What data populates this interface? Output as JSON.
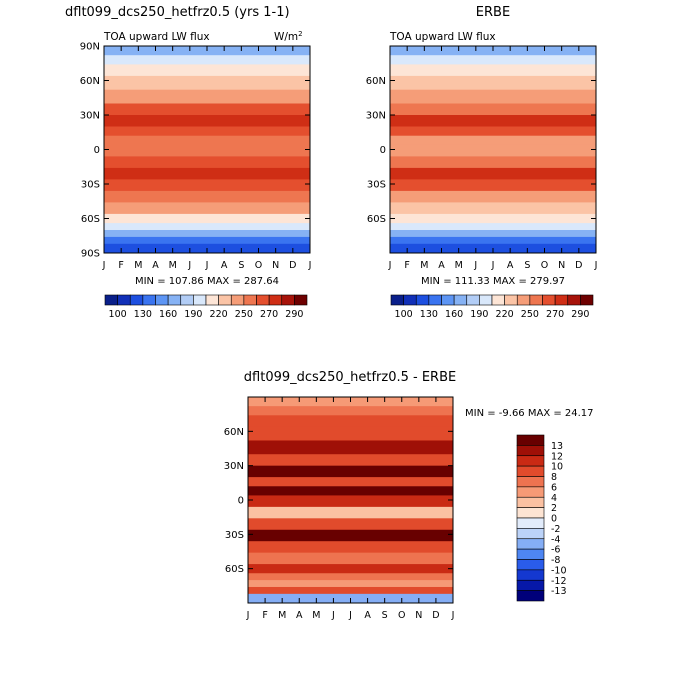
{
  "chart_data": [
    {
      "type": "heatmap",
      "title": "dflt099_dcs250_hetfrz0.5 (yrs 1-1)",
      "subtitle_left": "TOA upward LW flux",
      "units": "W/m",
      "units_sup": "2",
      "stats": "MIN = 107.86 MAX = 287.64",
      "x_ticks": [
        "J",
        "F",
        "M",
        "A",
        "M",
        "J",
        "J",
        "A",
        "S",
        "O",
        "N",
        "D",
        "J"
      ],
      "y_ticks": [
        "90N",
        "60N",
        "30N",
        "0",
        "30S",
        "60S",
        "90S"
      ],
      "y_tick_lats": [
        90,
        60,
        30,
        0,
        -30,
        -60,
        -90
      ],
      "colorbar_labels": [
        "100",
        "130",
        "160",
        "190",
        "220",
        "250",
        "270",
        "290"
      ],
      "colorbar_levels": [
        100,
        115,
        130,
        145,
        160,
        175,
        190,
        205,
        220,
        235,
        250,
        260,
        270,
        280,
        290
      ],
      "bands": [
        {
          "lat": [
            90,
            82
          ],
          "value": 170
        },
        {
          "lat": [
            82,
            74
          ],
          "value": 190
        },
        {
          "lat": [
            74,
            64
          ],
          "value": 210
        },
        {
          "lat": [
            64,
            52
          ],
          "value": 228
        },
        {
          "lat": [
            52,
            40
          ],
          "value": 245
        },
        {
          "lat": [
            40,
            30
          ],
          "value": 262
        },
        {
          "lat": [
            30,
            20
          ],
          "value": 275
        },
        {
          "lat": [
            20,
            12
          ],
          "value": 268
        },
        {
          "lat": [
            12,
            4
          ],
          "value": 255
        },
        {
          "lat": [
            4,
            -6
          ],
          "value": 250
        },
        {
          "lat": [
            -6,
            -16
          ],
          "value": 262
        },
        {
          "lat": [
            -16,
            -26
          ],
          "value": 276
        },
        {
          "lat": [
            -26,
            -36
          ],
          "value": 266
        },
        {
          "lat": [
            -36,
            -46
          ],
          "value": 252
        },
        {
          "lat": [
            -46,
            -56
          ],
          "value": 236
        },
        {
          "lat": [
            -56,
            -64
          ],
          "value": 218
        },
        {
          "lat": [
            -64,
            -70
          ],
          "value": 195
        },
        {
          "lat": [
            -70,
            -76
          ],
          "value": 165
        },
        {
          "lat": [
            -76,
            -82
          ],
          "value": 135
        },
        {
          "lat": [
            -82,
            -90
          ],
          "value": 115
        }
      ]
    },
    {
      "type": "heatmap",
      "title": "ERBE",
      "subtitle_left": "TOA upward LW flux",
      "stats": "MIN = 111.33 MAX = 279.97",
      "x_ticks": [
        "J",
        "F",
        "M",
        "A",
        "M",
        "J",
        "J",
        "A",
        "S",
        "O",
        "N",
        "D",
        "J"
      ],
      "y_ticks": [
        "60N",
        "30N",
        "0",
        "30S",
        "60S"
      ],
      "y_tick_lats": [
        60,
        30,
        0,
        -30,
        -60
      ],
      "colorbar_labels": [
        "100",
        "130",
        "160",
        "190",
        "220",
        "250",
        "270",
        "290"
      ],
      "colorbar_levels": [
        100,
        115,
        130,
        145,
        160,
        175,
        190,
        205,
        220,
        235,
        250,
        260,
        270,
        280,
        290
      ],
      "bands": [
        {
          "lat": [
            90,
            82
          ],
          "value": 172
        },
        {
          "lat": [
            82,
            74
          ],
          "value": 192
        },
        {
          "lat": [
            74,
            64
          ],
          "value": 212
        },
        {
          "lat": [
            64,
            52
          ],
          "value": 226
        },
        {
          "lat": [
            52,
            40
          ],
          "value": 240
        },
        {
          "lat": [
            40,
            30
          ],
          "value": 256
        },
        {
          "lat": [
            30,
            20
          ],
          "value": 270
        },
        {
          "lat": [
            20,
            12
          ],
          "value": 262
        },
        {
          "lat": [
            12,
            4
          ],
          "value": 248
        },
        {
          "lat": [
            4,
            -6
          ],
          "value": 244
        },
        {
          "lat": [
            -6,
            -16
          ],
          "value": 256
        },
        {
          "lat": [
            -16,
            -26
          ],
          "value": 270
        },
        {
          "lat": [
            -26,
            -36
          ],
          "value": 262
        },
        {
          "lat": [
            -36,
            -46
          ],
          "value": 248
        },
        {
          "lat": [
            -46,
            -56
          ],
          "value": 232
        },
        {
          "lat": [
            -56,
            -64
          ],
          "value": 212
        },
        {
          "lat": [
            -64,
            -70
          ],
          "value": 190
        },
        {
          "lat": [
            -70,
            -76
          ],
          "value": 162
        },
        {
          "lat": [
            -76,
            -82
          ],
          "value": 132
        },
        {
          "lat": [
            -82,
            -90
          ],
          "value": 118
        }
      ]
    },
    {
      "type": "heatmap",
      "title": "dflt099_dcs250_hetfrz0.5 - ERBE",
      "stats": "MIN =  -9.66 MAX =  24.17",
      "x_ticks": [
        "J",
        "F",
        "M",
        "A",
        "M",
        "J",
        "J",
        "A",
        "S",
        "O",
        "N",
        "D",
        "J"
      ],
      "y_ticks": [
        "60N",
        "30N",
        "0",
        "30S",
        "60S"
      ],
      "y_tick_lats": [
        60,
        30,
        0,
        -30,
        -60
      ],
      "colorbar_labels": [
        "13",
        "12",
        "10",
        "8",
        "6",
        "4",
        "2",
        "0",
        "-2",
        "-4",
        "-6",
        "-8",
        "-10",
        "-12",
        "-13"
      ],
      "colorbar_levels": [
        -13,
        -12,
        -10,
        -8,
        -6,
        -4,
        -2,
        0,
        2,
        4,
        6,
        8,
        10,
        12,
        13
      ],
      "bands": [
        {
          "lat": [
            90,
            82
          ],
          "value": 5
        },
        {
          "lat": [
            82,
            74
          ],
          "value": 7
        },
        {
          "lat": [
            74,
            64
          ],
          "value": 9
        },
        {
          "lat": [
            64,
            52
          ],
          "value": 8
        },
        {
          "lat": [
            52,
            40
          ],
          "value": 12
        },
        {
          "lat": [
            40,
            30
          ],
          "value": 9
        },
        {
          "lat": [
            30,
            20
          ],
          "value": 14
        },
        {
          "lat": [
            20,
            12
          ],
          "value": 9
        },
        {
          "lat": [
            12,
            4
          ],
          "value": 14
        },
        {
          "lat": [
            4,
            -6
          ],
          "value": 10
        },
        {
          "lat": [
            -6,
            -16
          ],
          "value": 3
        },
        {
          "lat": [
            -16,
            -26
          ],
          "value": 9
        },
        {
          "lat": [
            -26,
            -36
          ],
          "value": 14
        },
        {
          "lat": [
            -36,
            -46
          ],
          "value": 9
        },
        {
          "lat": [
            -46,
            -56
          ],
          "value": 7
        },
        {
          "lat": [
            -56,
            -64
          ],
          "value": 10
        },
        {
          "lat": [
            -64,
            -70
          ],
          "value": 6
        },
        {
          "lat": [
            -70,
            -76
          ],
          "value": 4
        },
        {
          "lat": [
            -76,
            -82
          ],
          "value": 8
        },
        {
          "lat": [
            -82,
            -90
          ],
          "value": -5
        }
      ]
    }
  ],
  "colors": {
    "abs_palette": [
      "#0a1f8a",
      "#1130b8",
      "#1d4fe0",
      "#3a74f0",
      "#5d95f4",
      "#86b2f4",
      "#b2cdf6",
      "#d9e8fb",
      "#fde5d6",
      "#fbc4a6",
      "#f59d78",
      "#ee7650",
      "#e44f2e",
      "#cf2e15",
      "#a7130a",
      "#6e0000"
    ],
    "diff_palette": [
      "#00007a",
      "#0618a8",
      "#1438d0",
      "#2a5cea",
      "#4e86f3",
      "#85aef5",
      "#bcd3f8",
      "#e2ecfb",
      "#fde4d3",
      "#fbc1a2",
      "#f69a76",
      "#ee7350",
      "#e14b2c",
      "#c92a14",
      "#9f1007",
      "#680000"
    ]
  }
}
